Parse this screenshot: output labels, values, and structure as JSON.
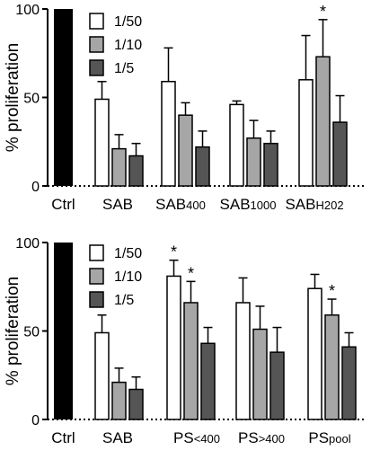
{
  "chart_data": [
    {
      "type": "bar",
      "ylabel": "% proliferation",
      "ylim": [
        0,
        100
      ],
      "yticks": [
        "0",
        "50",
        "100"
      ],
      "control": {
        "label": "Ctrl",
        "value": 100
      },
      "category_labels": [
        {
          "main": "SAB",
          "sub": ""
        },
        {
          "main": "SAB",
          "sub": "400"
        },
        {
          "main": "SAB",
          "sub": "1000"
        },
        {
          "main": "SAB",
          "sub": "H202"
        }
      ],
      "series": [
        {
          "name": "1/50",
          "color": "#ffffff",
          "values": [
            49,
            59,
            46,
            60
          ],
          "errors": [
            10,
            19,
            2,
            25
          ],
          "stars": [
            false,
            false,
            false,
            false
          ]
        },
        {
          "name": "1/10",
          "color": "#a6a6a6",
          "values": [
            21,
            40,
            27,
            73
          ],
          "errors": [
            8,
            7,
            10,
            21
          ],
          "stars": [
            false,
            false,
            false,
            true
          ]
        },
        {
          "name": "1/5",
          "color": "#555555",
          "values": [
            17,
            22,
            24,
            36
          ],
          "errors": [
            7,
            9,
            7,
            15
          ],
          "stars": [
            false,
            false,
            false,
            false
          ]
        }
      ],
      "star_label": "*"
    },
    {
      "type": "bar",
      "ylabel": "% proliferation",
      "ylim": [
        0,
        100
      ],
      "yticks": [
        "0",
        "50",
        "100"
      ],
      "control": {
        "label": "Ctrl",
        "value": 100
      },
      "category_labels": [
        {
          "main": "SAB",
          "sub": ""
        },
        {
          "main": "PS",
          "sub": "<400"
        },
        {
          "main": "PS",
          "sub": ">400"
        },
        {
          "main": "PS",
          "sub": "pool"
        }
      ],
      "series": [
        {
          "name": "1/50",
          "color": "#ffffff",
          "values": [
            49,
            81,
            66,
            74
          ],
          "errors": [
            10,
            9,
            14,
            8
          ],
          "stars": [
            false,
            true,
            false,
            false
          ]
        },
        {
          "name": "1/10",
          "color": "#a6a6a6",
          "values": [
            21,
            66,
            51,
            59
          ],
          "errors": [
            8,
            12,
            13,
            9
          ],
          "stars": [
            false,
            true,
            false,
            true
          ]
        },
        {
          "name": "1/5",
          "color": "#555555",
          "values": [
            17,
            43,
            38,
            41
          ],
          "errors": [
            7,
            9,
            14,
            8
          ],
          "stars": [
            false,
            false,
            false,
            false
          ]
        }
      ],
      "star_label": "*"
    }
  ]
}
